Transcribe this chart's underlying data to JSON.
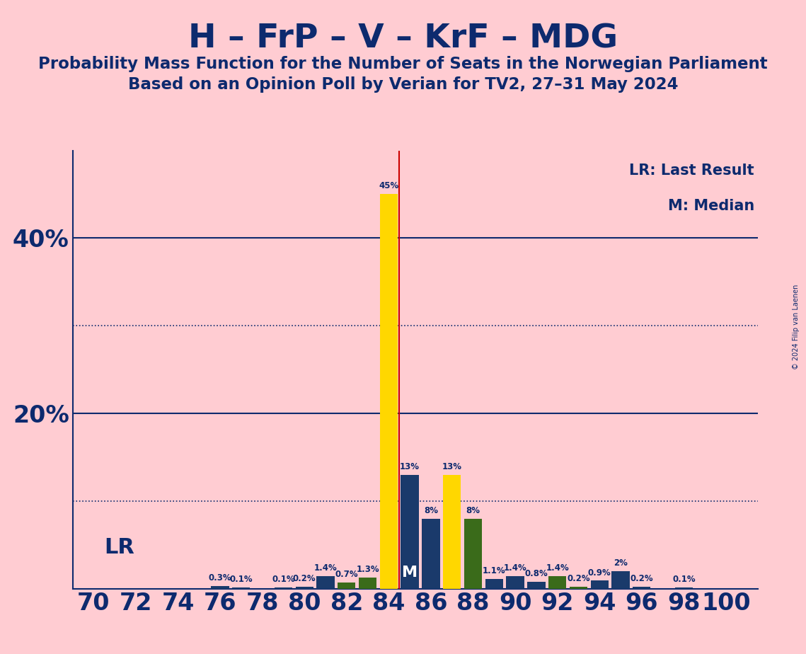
{
  "title_main": "H – FrP – V – KrF – MDG",
  "title_sub1": "Probability Mass Function for the Number of Seats in the Norwegian Parliament",
  "title_sub2": "Based on an Opinion Poll by Verian for TV2, 27–31 May 2024",
  "copyright": "© 2024 Filip van Laenen",
  "background_color": "#FFCCD2",
  "bar_color_blue": "#1a3a6b",
  "bar_color_yellow": "#FFD700",
  "bar_color_green": "#3a6b1a",
  "axis_color": "#0d2a6e",
  "lr_line_color": "#cc0000",
  "lr_x": 84.5,
  "median_x": 85,
  "seats": [
    70,
    71,
    72,
    73,
    74,
    75,
    76,
    77,
    78,
    79,
    80,
    81,
    82,
    83,
    84,
    85,
    86,
    87,
    88,
    89,
    90,
    91,
    92,
    93,
    94,
    95,
    96,
    97,
    98,
    99,
    100
  ],
  "probabilities": [
    0.0,
    0.0,
    0.0,
    0.0,
    0.0,
    0.0,
    0.3,
    0.1,
    0.0,
    0.1,
    0.2,
    1.4,
    0.7,
    1.3,
    45.0,
    13.0,
    8.0,
    13.0,
    8.0,
    1.1,
    1.4,
    0.8,
    1.4,
    0.2,
    0.9,
    2.0,
    0.2,
    0.0,
    0.1,
    0.0,
    0.0
  ],
  "bar_colors": [
    "blue",
    "blue",
    "blue",
    "blue",
    "blue",
    "blue",
    "blue",
    "blue",
    "blue",
    "blue",
    "blue",
    "blue",
    "green",
    "green",
    "yellow",
    "blue",
    "blue",
    "yellow",
    "green",
    "blue",
    "blue",
    "blue",
    "green",
    "green",
    "blue",
    "blue",
    "blue",
    "blue",
    "blue",
    "blue",
    "blue"
  ],
  "ylim": [
    0,
    50
  ],
  "xlim": [
    69.0,
    101.5
  ]
}
